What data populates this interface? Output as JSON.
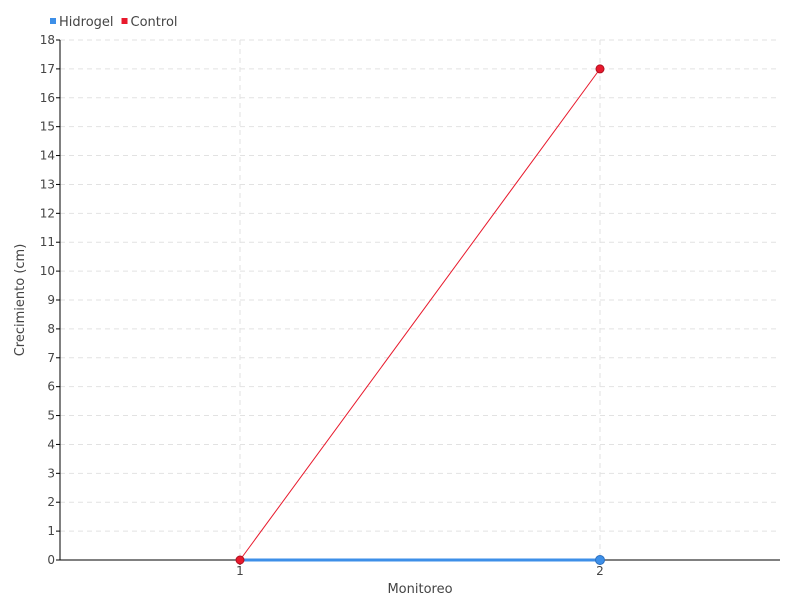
{
  "chart_data": {
    "type": "line",
    "title": "",
    "xlabel": "Monitoreo",
    "ylabel": "Crecimiento (cm)",
    "categories": [
      "1",
      "2"
    ],
    "ylim": [
      0,
      18
    ],
    "yticks": [
      "0",
      "1",
      "2",
      "3",
      "4",
      "5",
      "6",
      "7",
      "8",
      "9",
      "10",
      "11",
      "12",
      "13",
      "14",
      "15",
      "16",
      "17",
      "18"
    ],
    "grid": true,
    "legend_position": "top-left",
    "series": [
      {
        "name": "Hidrogel",
        "values": [
          0,
          0
        ],
        "color": "#3d8fe8"
      },
      {
        "name": "Control",
        "values": [
          0,
          17
        ],
        "color": "#e8192c"
      }
    ]
  }
}
